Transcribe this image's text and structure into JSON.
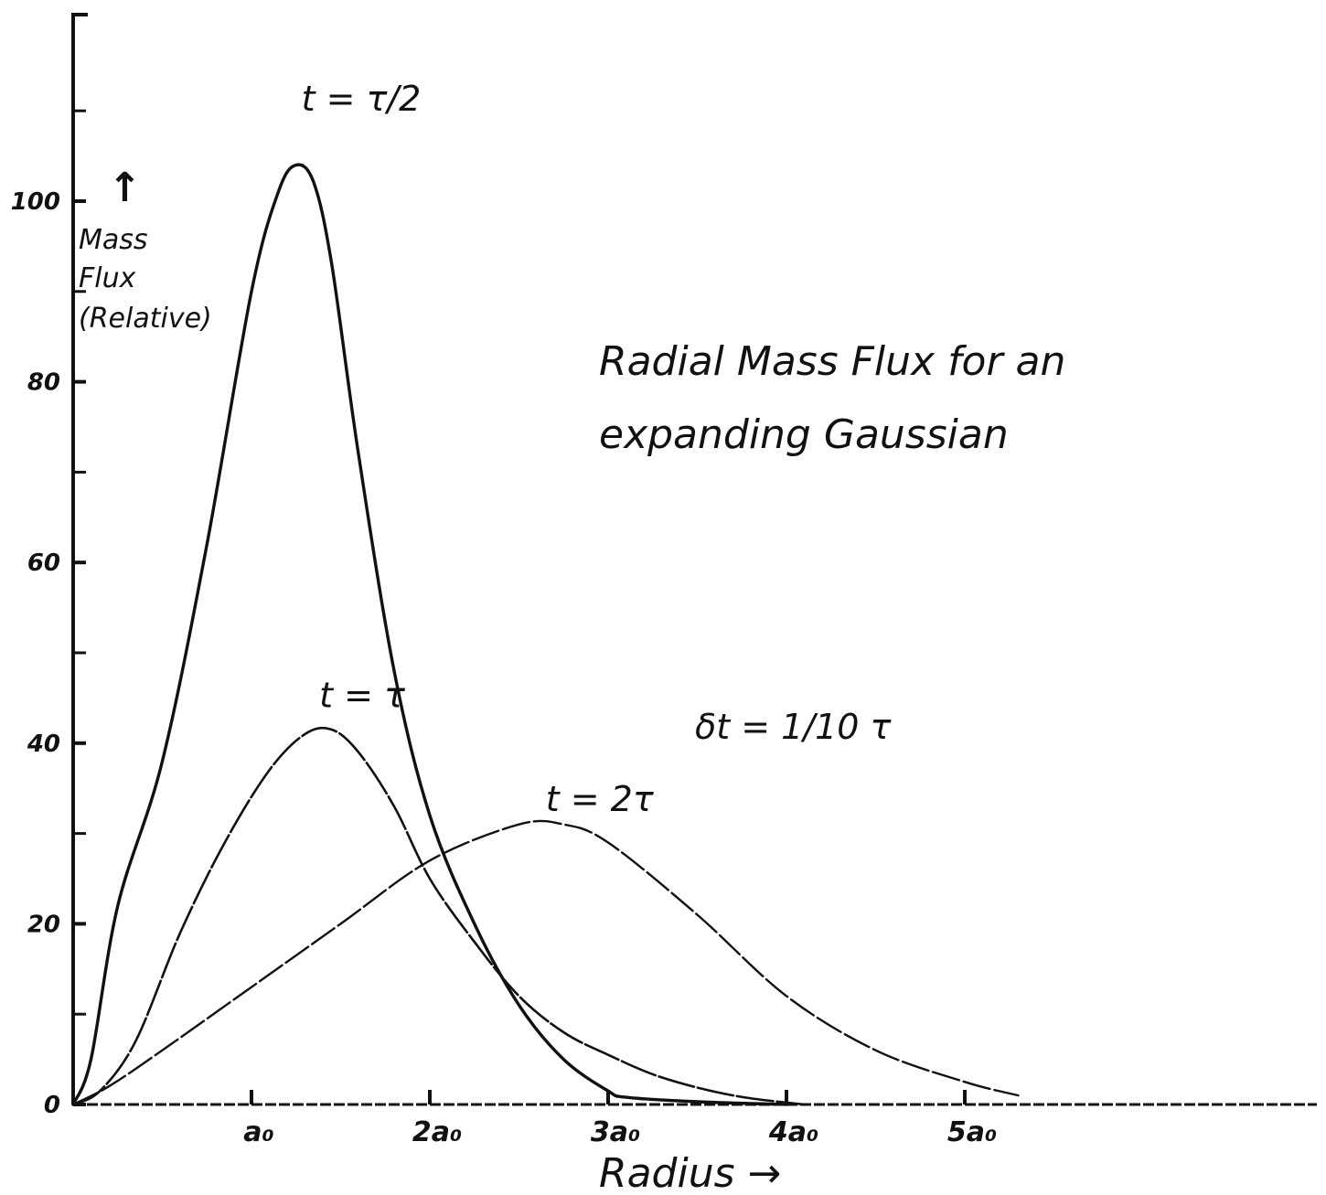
{
  "chart_data": {
    "type": "line",
    "title_lines": [
      "Radial Mass Flux for an",
      "expanding  Gaussian"
    ],
    "xlabel": "Radius →",
    "ylabel_lines": [
      "Mass",
      "Flux",
      "(Relative)"
    ],
    "ylabel_arrow": "↑",
    "annotation": "δt = 1/10 τ",
    "xlim": [
      0,
      6.9
    ],
    "ylim": [
      0,
      122
    ],
    "xticks": [
      {
        "value": 1,
        "label": "a₀"
      },
      {
        "value": 2,
        "label": "2a₀"
      },
      {
        "value": 3,
        "label": "3a₀"
      },
      {
        "value": 4,
        "label": "4a₀"
      },
      {
        "value": 5,
        "label": "5a₀"
      }
    ],
    "yticks_minor": [
      10,
      30,
      50,
      70,
      90,
      110
    ],
    "yticks_major": [
      {
        "value": 0,
        "label": "0"
      },
      {
        "value": 20,
        "label": "20"
      },
      {
        "value": 40,
        "label": "40"
      },
      {
        "value": 60,
        "label": "60"
      },
      {
        "value": 80,
        "label": "80"
      },
      {
        "value": 100,
        "label": "100"
      }
    ],
    "series": [
      {
        "name": "t = τ/2",
        "label_at": [
          1.28,
          110
        ],
        "x": [
          0,
          0.1,
          0.25,
          0.5,
          0.75,
          1.0,
          1.15,
          1.25,
          1.35,
          1.45,
          1.6,
          1.8,
          2.0,
          2.25,
          2.5,
          2.75,
          3.0,
          3.1,
          3.5,
          4.0
        ],
        "y": [
          0,
          5,
          22,
          38,
          62,
          90,
          101,
          104,
          102,
          93,
          72,
          48,
          32,
          20,
          11,
          5,
          1.5,
          0.8,
          0.3,
          0
        ]
      },
      {
        "name": "t = τ",
        "label_at": [
          1.38,
          44
        ],
        "x": [
          0,
          0.15,
          0.35,
          0.6,
          0.85,
          1.1,
          1.3,
          1.45,
          1.6,
          1.8,
          2.0,
          2.25,
          2.5,
          2.75,
          3.0,
          3.3,
          3.7,
          4.1
        ],
        "y": [
          0,
          1.5,
          7,
          19,
          29,
          37,
          41,
          41.5,
          39,
          33,
          25,
          18,
          12,
          8,
          5.5,
          3,
          1,
          0
        ]
      },
      {
        "name": "t = 2τ",
        "label_at": [
          2.65,
          32.5
        ],
        "x": [
          0,
          0.2,
          0.5,
          1.0,
          1.5,
          2.0,
          2.5,
          2.75,
          3.0,
          3.5,
          4.0,
          4.5,
          5.0,
          5.3
        ],
        "y": [
          0,
          2,
          6,
          13,
          20,
          27,
          31,
          31,
          29,
          21,
          12,
          6,
          2.5,
          1
        ]
      }
    ]
  }
}
